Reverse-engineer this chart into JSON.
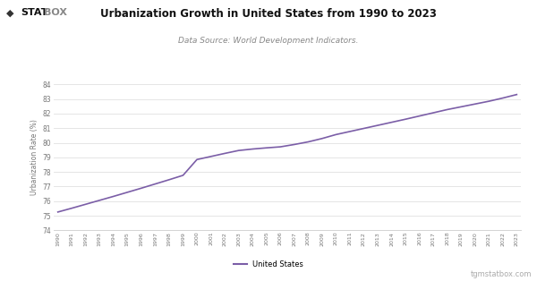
{
  "title": "Urbanization Growth in United States from 1990 to 2023",
  "subtitle": "Data Source: World Development Indicators.",
  "ylabel": "Urbanization Rate (%)",
  "watermark": "tgmstatbox.com",
  "legend_label": "United States",
  "line_color": "#7b5ea7",
  "background_color": "#ffffff",
  "header_bg": "#ffffff",
  "years": [
    1990,
    1991,
    1992,
    1993,
    1994,
    1995,
    1996,
    1997,
    1998,
    1999,
    2000,
    2001,
    2002,
    2003,
    2004,
    2005,
    2006,
    2007,
    2008,
    2009,
    2010,
    2011,
    2012,
    2013,
    2014,
    2015,
    2016,
    2017,
    2018,
    2019,
    2020,
    2021,
    2022,
    2023
  ],
  "values": [
    75.26,
    75.52,
    75.79,
    76.06,
    76.33,
    76.61,
    76.89,
    77.18,
    77.47,
    77.77,
    78.85,
    79.06,
    79.27,
    79.47,
    79.57,
    79.65,
    79.72,
    79.88,
    80.06,
    80.29,
    80.56,
    80.77,
    80.98,
    81.19,
    81.4,
    81.61,
    81.83,
    82.05,
    82.27,
    82.46,
    82.65,
    82.84,
    83.06,
    83.3
  ],
  "ylim": [
    74,
    84
  ],
  "yticks": [
    74,
    75,
    76,
    77,
    78,
    79,
    80,
    81,
    82,
    83,
    84
  ],
  "logo_text_stat": "STAT",
  "logo_text_box": "BOX",
  "logo_icon": "◆",
  "logo_color_icon": "#333333",
  "logo_color_stat": "#111111",
  "logo_color_box": "#888888",
  "title_color": "#111111",
  "subtitle_color": "#888888",
  "ylabel_color": "#777777",
  "tick_color": "#777777",
  "grid_color": "#e0e0e0",
  "watermark_color": "#aaaaaa"
}
